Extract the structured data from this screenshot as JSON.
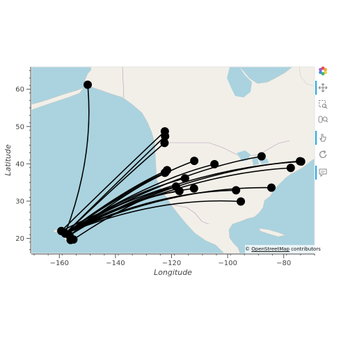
{
  "chart_data": {
    "type": "map",
    "xlabel": "Longitude",
    "ylabel": "Latitude",
    "xlim": [
      -170,
      -69
    ],
    "ylim": [
      16,
      66
    ],
    "xticks": [
      -160,
      -140,
      -120,
      -100,
      -80
    ],
    "yticks": [
      20,
      30,
      40,
      50,
      60
    ],
    "grid": false,
    "origins": [
      {
        "lon": -157.9,
        "lat": 21.3
      },
      {
        "lon": -159.3,
        "lat": 22.0
      },
      {
        "lon": -156.4,
        "lat": 20.8
      },
      {
        "lon": -155.0,
        "lat": 19.7
      },
      {
        "lon": -156.0,
        "lat": 19.6
      }
    ],
    "destinations": [
      {
        "lon": -149.9,
        "lat": 61.2
      },
      {
        "lon": -122.3,
        "lat": 47.4
      },
      {
        "lon": -122.5,
        "lat": 45.6
      },
      {
        "lon": -122.4,
        "lat": 48.7
      },
      {
        "lon": -122.4,
        "lat": 37.6
      },
      {
        "lon": -122.2,
        "lat": 37.7
      },
      {
        "lon": -121.6,
        "lat": 38.3
      },
      {
        "lon": -118.4,
        "lat": 33.9
      },
      {
        "lon": -117.2,
        "lat": 32.7
      },
      {
        "lon": -115.2,
        "lat": 36.1
      },
      {
        "lon": -111.9,
        "lat": 40.8
      },
      {
        "lon": -112.0,
        "lat": 33.4
      },
      {
        "lon": -104.7,
        "lat": 39.9
      },
      {
        "lon": -97.0,
        "lat": 32.9
      },
      {
        "lon": -95.3,
        "lat": 29.9
      },
      {
        "lon": -87.9,
        "lat": 42.0
      },
      {
        "lon": -84.4,
        "lat": 33.6
      },
      {
        "lon": -77.5,
        "lat": 38.9
      },
      {
        "lon": -74.2,
        "lat": 40.7
      },
      {
        "lon": -73.8,
        "lat": 40.6
      }
    ],
    "routes": [
      {
        "from": 0,
        "to": 0
      },
      {
        "from": 0,
        "to": 1
      },
      {
        "from": 0,
        "to": 2
      },
      {
        "from": 1,
        "to": 3
      },
      {
        "from": 0,
        "to": 4
      },
      {
        "from": 2,
        "to": 5
      },
      {
        "from": 0,
        "to": 6
      },
      {
        "from": 0,
        "to": 7
      },
      {
        "from": 2,
        "to": 7
      },
      {
        "from": 3,
        "to": 7
      },
      {
        "from": 0,
        "to": 8
      },
      {
        "from": 0,
        "to": 9
      },
      {
        "from": 0,
        "to": 10
      },
      {
        "from": 0,
        "to": 11
      },
      {
        "from": 0,
        "to": 12
      },
      {
        "from": 0,
        "to": 13
      },
      {
        "from": 0,
        "to": 14
      },
      {
        "from": 0,
        "to": 15
      },
      {
        "from": 0,
        "to": 16
      },
      {
        "from": 0,
        "to": 17
      },
      {
        "from": 0,
        "to": 18
      },
      {
        "from": 1,
        "to": 19
      }
    ]
  },
  "attribution": {
    "prefix": "© ",
    "link": "OpenStreetMap",
    "suffix": " contributors"
  },
  "toolbar": {
    "logo": "bokeh-logo-icon",
    "tools": [
      {
        "name": "pan-icon",
        "active": true
      },
      {
        "name": "box-zoom-icon",
        "active": false
      },
      {
        "name": "wheel-zoom-icon",
        "active": false
      },
      {
        "name": "tap-icon",
        "active": true
      },
      {
        "name": "reset-icon",
        "active": false
      },
      {
        "name": "hover-icon",
        "active": true
      }
    ]
  },
  "colors": {
    "ocean": "#aad3df",
    "land": "#f2efe9",
    "route": "#000000",
    "marker": "#000000",
    "tool_active": "#26aae1"
  }
}
